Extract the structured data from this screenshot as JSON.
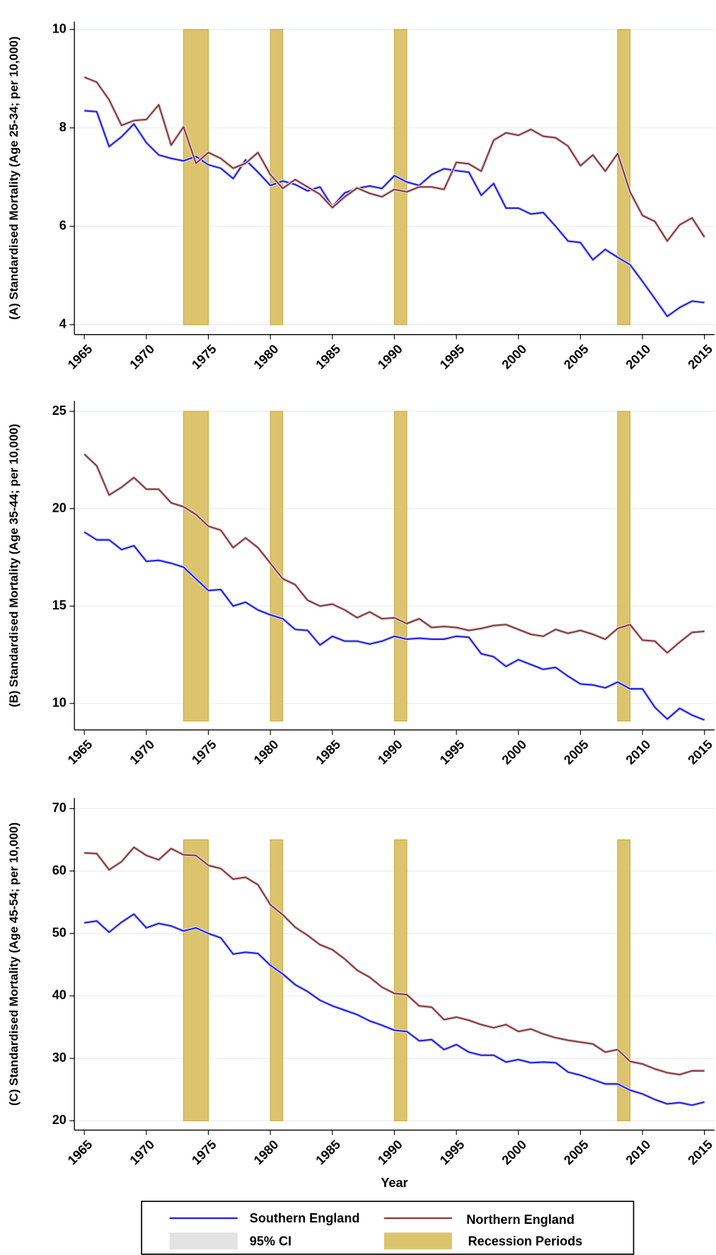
{
  "chart_data": [
    {
      "type": "line",
      "ylabel": "(A) Standardised Mortality (Age 25-34; per 10,000)",
      "x": [
        1965,
        1966,
        1967,
        1968,
        1969,
        1970,
        1971,
        1972,
        1973,
        1974,
        1975,
        1976,
        1977,
        1978,
        1979,
        1980,
        1981,
        1982,
        1983,
        1984,
        1985,
        1986,
        1987,
        1988,
        1989,
        1990,
        1991,
        1992,
        1993,
        1994,
        1995,
        1996,
        1997,
        1998,
        1999,
        2000,
        2001,
        2002,
        2003,
        2004,
        2005,
        2006,
        2007,
        2008,
        2009,
        2010,
        2011,
        2012,
        2013,
        2014,
        2015
      ],
      "xlim": [
        1964.2,
        2015.8
      ],
      "xticks": [
        1965,
        1970,
        1975,
        1980,
        1985,
        1990,
        1995,
        2000,
        2005,
        2010,
        2015
      ],
      "ylim": [
        3.8,
        10.16
      ],
      "yticks": [
        4,
        6,
        8,
        10
      ],
      "grid": true,
      "recessions": {
        "color": "#dcc46e",
        "low": 4,
        "high": 10,
        "periods": [
          [
            1973,
            1975
          ],
          [
            1980,
            1981
          ],
          [
            1990,
            1991
          ],
          [
            2008,
            2009
          ]
        ]
      },
      "series": [
        {
          "name": "Southern England",
          "color": "#1a1aff",
          "values": [
            8.35,
            8.33,
            7.62,
            7.82,
            8.08,
            7.7,
            7.45,
            7.38,
            7.33,
            7.42,
            7.25,
            7.18,
            6.97,
            7.35,
            7.1,
            6.83,
            6.92,
            6.85,
            6.72,
            6.8,
            6.4,
            6.68,
            6.77,
            6.82,
            6.77,
            7.03,
            6.9,
            6.83,
            7.05,
            7.17,
            7.13,
            7.1,
            6.63,
            6.87,
            6.37,
            6.37,
            6.25,
            6.28,
            6.0,
            5.7,
            5.67,
            5.32,
            5.53,
            5.37,
            5.22,
            4.88,
            4.53,
            4.17,
            4.35,
            4.48,
            4.45
          ]
        },
        {
          "name": "Northern England",
          "color": "#8e3437",
          "values": [
            9.03,
            8.93,
            8.57,
            8.05,
            8.15,
            8.17,
            8.47,
            7.65,
            8.02,
            7.28,
            7.5,
            7.38,
            7.18,
            7.28,
            7.5,
            7.05,
            6.77,
            6.95,
            6.8,
            6.65,
            6.38,
            6.6,
            6.78,
            6.67,
            6.6,
            6.75,
            6.7,
            6.8,
            6.8,
            6.75,
            7.3,
            7.27,
            7.12,
            7.75,
            7.9,
            7.85,
            7.97,
            7.83,
            7.8,
            7.63,
            7.23,
            7.45,
            7.12,
            7.48,
            6.7,
            6.22,
            6.1,
            5.7,
            6.03,
            6.17,
            5.78
          ]
        }
      ]
    },
    {
      "type": "line",
      "ylabel": "(B) Standardised Mortality (Age 35-44; per 10,000)",
      "x": [
        1965,
        1966,
        1967,
        1968,
        1969,
        1970,
        1971,
        1972,
        1973,
        1974,
        1975,
        1976,
        1977,
        1978,
        1979,
        1980,
        1981,
        1982,
        1983,
        1984,
        1985,
        1986,
        1987,
        1988,
        1989,
        1990,
        1991,
        1992,
        1993,
        1994,
        1995,
        1996,
        1997,
        1998,
        1999,
        2000,
        2001,
        2002,
        2003,
        2004,
        2005,
        2006,
        2007,
        2008,
        2009,
        2010,
        2011,
        2012,
        2013,
        2014,
        2015
      ],
      "xlim": [
        1964.2,
        2015.8
      ],
      "xticks": [
        1965,
        1970,
        1975,
        1980,
        1985,
        1990,
        1995,
        2000,
        2005,
        2010,
        2015
      ],
      "ylim": [
        8.64,
        25.53
      ],
      "yticks": [
        10,
        15,
        20,
        25
      ],
      "grid": true,
      "recessions": {
        "color": "#dcc46e",
        "low": 9.1,
        "high": 25,
        "periods": [
          [
            1973,
            1975
          ],
          [
            1980,
            1981
          ],
          [
            1990,
            1991
          ],
          [
            2008,
            2009
          ]
        ]
      },
      "series": [
        {
          "name": "Southern England",
          "color": "#1a1aff",
          "values": [
            18.8,
            18.4,
            18.4,
            17.9,
            18.1,
            17.3,
            17.35,
            17.2,
            17.0,
            16.4,
            15.8,
            15.85,
            15.0,
            15.2,
            14.8,
            14.55,
            14.35,
            13.8,
            13.75,
            13.0,
            13.45,
            13.2,
            13.2,
            13.05,
            13.2,
            13.45,
            13.3,
            13.35,
            13.3,
            13.3,
            13.45,
            13.4,
            12.55,
            12.4,
            11.9,
            12.25,
            12.0,
            11.75,
            11.85,
            11.4,
            11.0,
            10.95,
            10.8,
            11.1,
            10.75,
            10.75,
            9.8,
            9.2,
            9.75,
            9.4,
            9.15
          ]
        },
        {
          "name": "Northern England",
          "color": "#8e3437",
          "values": [
            22.8,
            22.2,
            20.7,
            21.1,
            21.6,
            21.0,
            21.0,
            20.3,
            20.1,
            19.7,
            19.1,
            18.9,
            18.0,
            18.5,
            18.0,
            17.2,
            16.4,
            16.1,
            15.3,
            15.0,
            15.1,
            14.8,
            14.4,
            14.7,
            14.35,
            14.4,
            14.1,
            14.35,
            13.9,
            13.95,
            13.9,
            13.75,
            13.85,
            14.0,
            14.05,
            13.8,
            13.55,
            13.45,
            13.8,
            13.6,
            13.75,
            13.55,
            13.3,
            13.85,
            14.05,
            13.25,
            13.2,
            12.6,
            13.15,
            13.65,
            13.7
          ]
        }
      ]
    },
    {
      "type": "line",
      "ylabel": "(C) Standardised Mortality (Age 45-54; per 10,000)",
      "xlabel": "Year",
      "x": [
        1965,
        1966,
        1967,
        1968,
        1969,
        1970,
        1971,
        1972,
        1973,
        1974,
        1975,
        1976,
        1977,
        1978,
        1979,
        1980,
        1981,
        1982,
        1983,
        1984,
        1985,
        1986,
        1987,
        1988,
        1989,
        1990,
        1991,
        1992,
        1993,
        1994,
        1995,
        1996,
        1997,
        1998,
        1999,
        2000,
        2001,
        2002,
        2003,
        2004,
        2005,
        2006,
        2007,
        2008,
        2009,
        2010,
        2011,
        2012,
        2013,
        2014,
        2015
      ],
      "xlim": [
        1964.2,
        2015.8
      ],
      "xticks": [
        1965,
        1970,
        1975,
        1980,
        1985,
        1990,
        1995,
        2000,
        2005,
        2010,
        2015
      ],
      "ylim": [
        18.5,
        71.7
      ],
      "yticks": [
        20,
        30,
        40,
        50,
        60,
        70
      ],
      "grid": true,
      "ci_label": "95% CI",
      "ci_color": "#e3e3e3",
      "recessions": {
        "label": "Recession Periods",
        "color": "#dcc46e",
        "low": 20,
        "high": 65,
        "periods": [
          [
            1973,
            1975
          ],
          [
            1980,
            1981
          ],
          [
            1990,
            1991
          ],
          [
            2008,
            2009
          ]
        ]
      },
      "series": [
        {
          "name": "Southern England",
          "color": "#1a1aff",
          "values": [
            51.7,
            52.0,
            50.2,
            51.8,
            53.1,
            50.9,
            51.6,
            51.2,
            50.4,
            50.9,
            50.0,
            49.3,
            46.7,
            47.0,
            46.8,
            44.9,
            43.5,
            41.8,
            40.7,
            39.3,
            38.4,
            37.7,
            37.0,
            36.0,
            35.3,
            34.5,
            34.3,
            32.8,
            33.0,
            31.4,
            32.2,
            31.0,
            30.5,
            30.5,
            29.4,
            29.8,
            29.3,
            29.4,
            29.3,
            27.8,
            27.3,
            26.6,
            25.9,
            25.9,
            24.9,
            24.3,
            23.4,
            22.7,
            22.9,
            22.5,
            23.0
          ]
        },
        {
          "name": "Northern England",
          "color": "#8e3437",
          "values": [
            62.9,
            62.8,
            60.2,
            61.5,
            63.8,
            62.5,
            61.8,
            63.6,
            62.6,
            62.5,
            60.9,
            60.4,
            58.7,
            59.0,
            57.8,
            54.6,
            53.0,
            51.0,
            49.7,
            48.2,
            47.4,
            45.9,
            44.1,
            43.0,
            41.4,
            40.4,
            40.2,
            38.4,
            38.2,
            36.2,
            36.6,
            36.1,
            35.4,
            34.9,
            35.4,
            34.3,
            34.7,
            33.9,
            33.3,
            32.9,
            32.6,
            32.3,
            31.0,
            31.4,
            29.5,
            29.1,
            28.3,
            27.7,
            27.4,
            28.0,
            28.0
          ]
        }
      ]
    }
  ]
}
